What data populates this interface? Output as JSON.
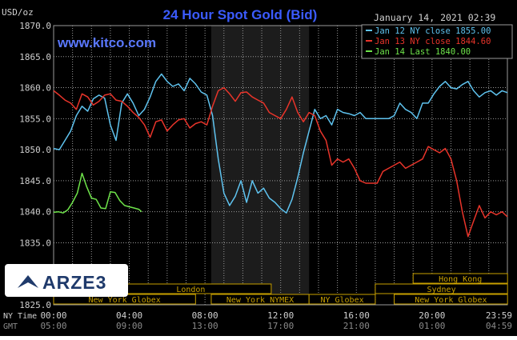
{
  "header": {
    "title": "24 Hour Spot Gold (Bid)",
    "datetime": "January 14, 2021 02:39",
    "y_unit": "USD/oz",
    "website": "www.kitco.com",
    "logo_text": "ARZE3"
  },
  "colors": {
    "background": "#000000",
    "grid": "#9a9a9a",
    "title": "#3b5bff",
    "website": "#5a78ff",
    "market_box": "#c8a000",
    "nymex_shade": "#1c1c1c",
    "axis_text": "#d0d0d0",
    "gmt_text": "#8a8a8a"
  },
  "axis_labels": {
    "ny_time": "NY Time",
    "gmt": "GMT"
  },
  "markets": [
    {
      "name": "Hong Kong",
      "row": 1,
      "start": 19.0,
      "end": 23.99
    },
    {
      "name": "London",
      "row": 2,
      "start": 3.0,
      "end": 11.5
    },
    {
      "name": "Sydney",
      "row": 2,
      "start": 17.0,
      "end": 23.99
    },
    {
      "name": "New York Globex",
      "row": 3,
      "start": 0.0,
      "end": 7.5
    },
    {
      "name": "New York NYMEX",
      "row": 3,
      "start": 8.33,
      "end": 13.5
    },
    {
      "name": "NY Globex",
      "row": 3,
      "start": 13.5,
      "end": 17.0
    },
    {
      "name": "New York Globex",
      "row": 3,
      "start": 18.0,
      "end": 23.99
    }
  ],
  "chart_data": {
    "type": "line",
    "title": "24 Hour Spot Gold (Bid)",
    "ylabel": "USD/oz",
    "ylim": [
      1825,
      1870
    ],
    "xlim": [
      0,
      23.983
    ],
    "grid": true,
    "legend_position": "top-right",
    "x_ticks": [
      {
        "x": 0,
        "ny": "00:00",
        "gmt": "05:00"
      },
      {
        "x": 4,
        "ny": "04:00",
        "gmt": "09:00"
      },
      {
        "x": 8,
        "ny": "08:00",
        "gmt": "13:00"
      },
      {
        "x": 12,
        "ny": "12:00",
        "gmt": "17:00"
      },
      {
        "x": 16,
        "ny": "16:00",
        "gmt": "21:00"
      },
      {
        "x": 20,
        "ny": "20:00",
        "gmt": "01:00"
      },
      {
        "x": 23.983,
        "ny": "23:59",
        "gmt": "04:59"
      }
    ],
    "y_ticks": [
      {
        "v": 1870,
        "label": "1870.0"
      },
      {
        "v": 1865,
        "label": "1865.0"
      },
      {
        "v": 1860,
        "label": "1860.0"
      },
      {
        "v": 1855,
        "label": "1855.0"
      },
      {
        "v": 1850,
        "label": "1850.0"
      },
      {
        "v": 1845,
        "label": "1845.0"
      },
      {
        "v": 1840,
        "label": "1840.0"
      },
      {
        "v": 1835,
        "label": "1835.0"
      },
      {
        "v": 1825,
        "label": "1825.0"
      }
    ],
    "shaded_region": [
      8.33,
      13.5
    ],
    "series": [
      {
        "name": "Jan 12 NY close 1855.00",
        "color": "#5fc3ef",
        "x": [
          0.0,
          0.3,
          0.6,
          0.9,
          1.2,
          1.5,
          1.8,
          2.1,
          2.4,
          2.7,
          3.0,
          3.3,
          3.6,
          3.9,
          4.2,
          4.5,
          4.8,
          5.1,
          5.4,
          5.7,
          6.0,
          6.3,
          6.6,
          6.9,
          7.2,
          7.5,
          7.8,
          8.1,
          8.4,
          8.7,
          9.0,
          9.3,
          9.6,
          9.9,
          10.2,
          10.5,
          10.8,
          11.1,
          11.4,
          11.7,
          12.0,
          12.3,
          12.6,
          12.9,
          13.2,
          13.5,
          13.8,
          14.1,
          14.4,
          14.7,
          15.0,
          15.3,
          15.6,
          15.9,
          16.2,
          16.5,
          16.8,
          17.1,
          17.4,
          17.7,
          18.0,
          18.3,
          18.6,
          18.9,
          19.2,
          19.5,
          19.8,
          20.1,
          20.4,
          20.7,
          21.0,
          21.3,
          21.6,
          21.9,
          22.2,
          22.5,
          22.8,
          23.1,
          23.4,
          23.7,
          23.983
        ],
        "values": [
          1850.2,
          1850.0,
          1851.5,
          1853.0,
          1855.5,
          1857.0,
          1856.2,
          1858.2,
          1858.8,
          1858.3,
          1854.0,
          1851.5,
          1857.5,
          1859.0,
          1857.5,
          1855.5,
          1856.5,
          1858.5,
          1861.0,
          1862.2,
          1861.0,
          1860.2,
          1860.6,
          1859.5,
          1861.5,
          1860.6,
          1859.3,
          1858.8,
          1855.5,
          1848.5,
          1843.0,
          1841.0,
          1842.5,
          1845.0,
          1841.5,
          1845.0,
          1843.0,
          1843.8,
          1842.2,
          1841.5,
          1840.5,
          1839.8,
          1842.0,
          1845.5,
          1849.5,
          1853.0,
          1856.5,
          1855.0,
          1855.5,
          1854.0,
          1856.5,
          1856.0,
          1855.8,
          1855.5,
          1856.0,
          1855.0,
          1855.0,
          1855.0,
          1855.0,
          1855.0,
          1855.5,
          1857.5,
          1856.5,
          1856.0,
          1855.0,
          1857.5,
          1857.5,
          1859.0,
          1860.2,
          1861.0,
          1860.0,
          1859.8,
          1860.5,
          1861.0,
          1859.5,
          1858.5,
          1859.2,
          1859.5,
          1858.8,
          1859.5,
          1859.2
        ]
      },
      {
        "name": "Jan 13 NY close 1844.60",
        "color": "#e8342a",
        "x": [
          0.0,
          0.3,
          0.6,
          0.9,
          1.2,
          1.5,
          1.8,
          2.1,
          2.4,
          2.7,
          3.0,
          3.3,
          3.6,
          3.9,
          4.2,
          4.5,
          4.8,
          5.1,
          5.4,
          5.7,
          6.0,
          6.3,
          6.6,
          6.9,
          7.2,
          7.5,
          7.8,
          8.1,
          8.4,
          8.7,
          9.0,
          9.3,
          9.6,
          9.9,
          10.2,
          10.5,
          10.8,
          11.1,
          11.4,
          11.7,
          12.0,
          12.3,
          12.6,
          12.9,
          13.2,
          13.5,
          13.8,
          14.1,
          14.4,
          14.7,
          15.0,
          15.3,
          15.6,
          15.9,
          16.2,
          16.5,
          16.8,
          17.1,
          17.4,
          17.7,
          18.0,
          18.3,
          18.6,
          18.9,
          19.2,
          19.5,
          19.8,
          20.1,
          20.4,
          20.7,
          21.0,
          21.3,
          21.6,
          21.9,
          22.2,
          22.5,
          22.8,
          23.1,
          23.4,
          23.7,
          23.983
        ],
        "values": [
          1859.5,
          1858.8,
          1858.0,
          1857.5,
          1856.5,
          1859.0,
          1858.5,
          1857.2,
          1857.8,
          1858.8,
          1859.0,
          1858.0,
          1857.8,
          1857.0,
          1856.0,
          1855.2,
          1854.0,
          1852.0,
          1854.5,
          1854.8,
          1853.0,
          1854.0,
          1854.8,
          1855.0,
          1853.5,
          1854.2,
          1854.5,
          1854.0,
          1857.0,
          1859.5,
          1860.0,
          1859.0,
          1857.8,
          1859.2,
          1859.3,
          1858.5,
          1858.0,
          1857.5,
          1856.0,
          1855.5,
          1855.0,
          1856.5,
          1858.5,
          1856.0,
          1854.5,
          1856.0,
          1855.5,
          1853.0,
          1851.5,
          1847.5,
          1848.5,
          1848.0,
          1848.5,
          1847.0,
          1845.0,
          1844.6,
          1844.6,
          1844.6,
          1846.5,
          1847.0,
          1847.5,
          1848.0,
          1847.0,
          1847.5,
          1848.0,
          1848.5,
          1850.5,
          1850.0,
          1849.5,
          1850.2,
          1848.5,
          1845.0,
          1840.0,
          1836.0,
          1838.5,
          1841.0,
          1839.0,
          1840.0,
          1839.5,
          1840.0,
          1839.2
        ]
      },
      {
        "name": "Jan 14 Last 1840.00",
        "color": "#6ee34a",
        "x": [
          0.0,
          0.25,
          0.5,
          0.75,
          1.0,
          1.25,
          1.5,
          1.75,
          2.0,
          2.25,
          2.5,
          2.75,
          3.0,
          3.25,
          3.5,
          3.75,
          4.0,
          4.25,
          4.5,
          4.65
        ],
        "values": [
          1839.9,
          1840.0,
          1839.8,
          1840.3,
          1841.5,
          1843.0,
          1846.2,
          1844.0,
          1842.2,
          1842.0,
          1840.6,
          1840.5,
          1843.2,
          1843.1,
          1841.8,
          1841.0,
          1840.8,
          1840.6,
          1840.4,
          1840.0
        ]
      }
    ]
  }
}
